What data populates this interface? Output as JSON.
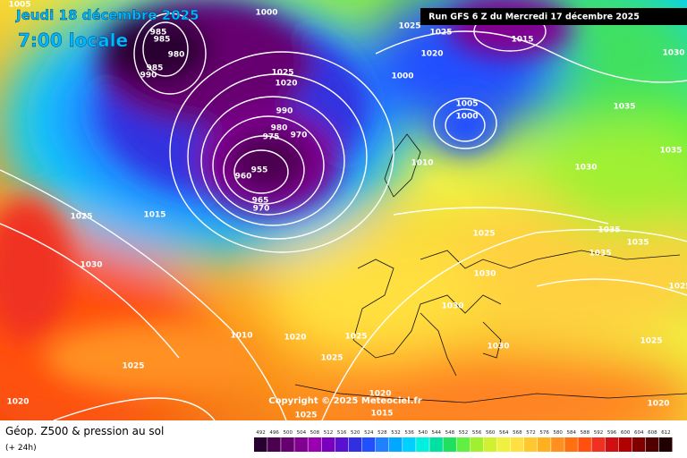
{
  "header": {
    "date": "Jeudi 18 décembre 2025",
    "time": "7:00 locale",
    "run": "Run GFS 6 Z du Mercredi 17 décembre 2025"
  },
  "copyright": "Copyright © 2025 Meteociel.fr",
  "footer": {
    "title": "Géop. Z500 & pression au sol",
    "subtitle": "(+ 24h)"
  },
  "legend": {
    "labels": [
      492,
      496,
      500,
      504,
      508,
      512,
      516,
      520,
      524,
      528,
      532,
      536,
      540,
      544,
      548,
      552,
      556,
      560,
      564,
      568,
      572,
      576,
      580,
      584,
      588,
      592,
      596,
      600,
      604,
      608,
      612
    ],
    "colors": [
      "#2a0030",
      "#4b0050",
      "#660070",
      "#800090",
      "#9a00b0",
      "#7a00c0",
      "#5a10d0",
      "#3030e0",
      "#2050ff",
      "#2080ff",
      "#00a8ff",
      "#00d0ff",
      "#00f0e0",
      "#00e0a0",
      "#20e060",
      "#60f040",
      "#a0f030",
      "#d0f030",
      "#f0f040",
      "#ffe040",
      "#ffc830",
      "#ffb020",
      "#ff9020",
      "#ff7010",
      "#ff5010",
      "#f03020",
      "#d01010",
      "#b00000",
      "#800000",
      "#500000",
      "#200000"
    ]
  },
  "isobar_labels": [
    "1005",
    "1000",
    "985",
    "985",
    "980",
    "985",
    "990",
    "1025",
    "1020",
    "990",
    "980",
    "975",
    "970",
    "955",
    "960",
    "965",
    "970",
    "1025",
    "1025",
    "1020",
    "1015",
    "1000",
    "1005",
    "1000",
    "1030",
    "1035",
    "1035",
    "1030",
    "1010",
    "1015",
    "1025",
    "1030",
    "1025",
    "1035",
    "1035",
    "1035",
    "1030",
    "1030",
    "1030",
    "1010",
    "1020",
    "1025",
    "1025",
    "1025",
    "1025",
    "1020",
    "1020",
    "1025",
    "1015",
    "1020",
    "1025"
  ]
}
